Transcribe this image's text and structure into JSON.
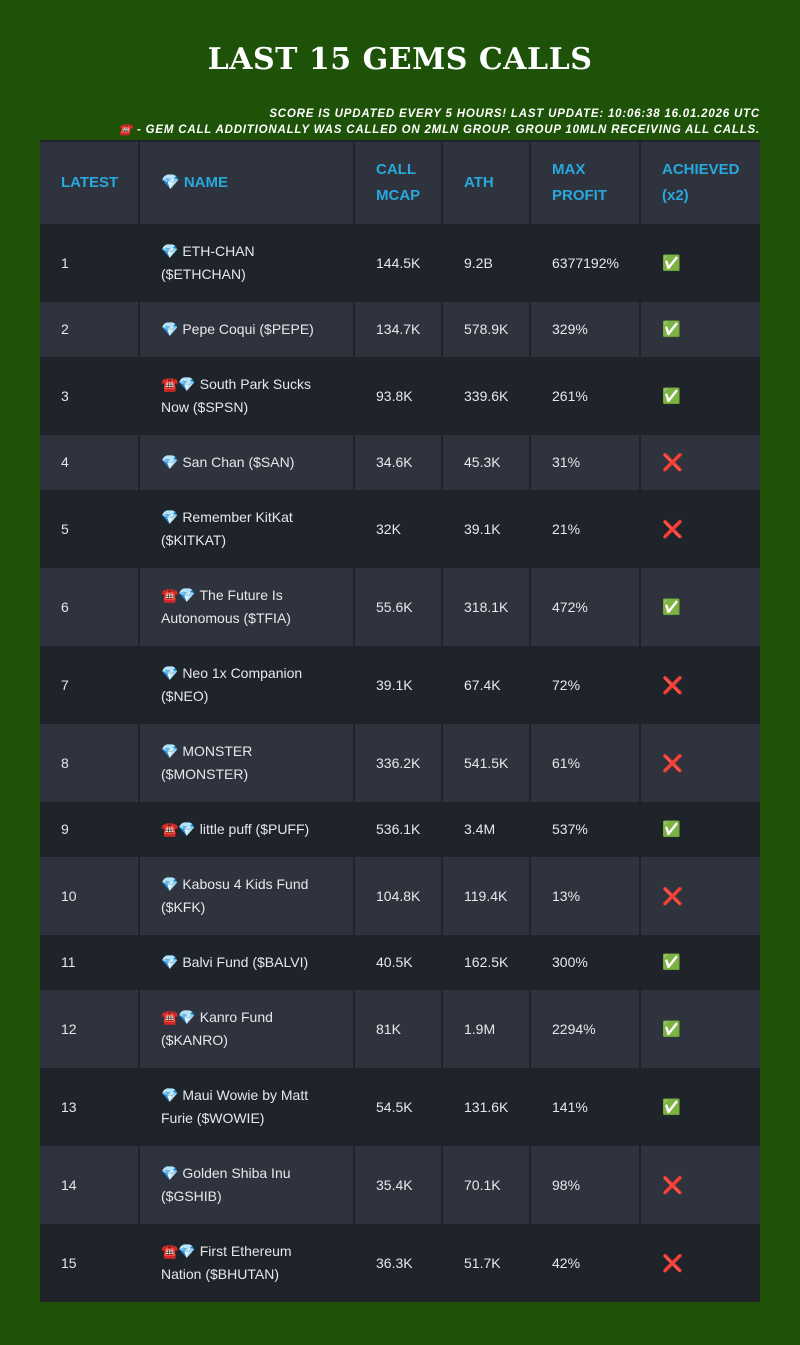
{
  "title": "LAST 15 GEMS CALLS",
  "notes": {
    "update": "SCORE IS UPDATED EVERY 5 HOURS! LAST UPDATE: 10:06:38 16.01.2026 UTC",
    "legend": "☎️ - GEM CALL ADDITIONALLY WAS CALLED ON 2MLN GROUP. GROUP 10MLN RECEIVING ALL CALLS."
  },
  "headers": [
    "LATEST",
    "💎 NAME",
    "CALL MCAP",
    "ATH",
    "MAX PROFIT",
    "ACHIEVED (x2)"
  ],
  "rows": [
    {
      "n": "1",
      "name": "💎 ETH-CHAN ($ETHCHAN)",
      "mcap": "144.5K",
      "ath": "9.2B",
      "profit": "6377192%",
      "ach": "✅"
    },
    {
      "n": "2",
      "name": "💎 Pepe Coqui ($PEPE)",
      "mcap": "134.7K",
      "ath": "578.9K",
      "profit": "329%",
      "ach": "✅"
    },
    {
      "n": "3",
      "name": "☎️💎 South Park Sucks Now ($SPSN)",
      "mcap": "93.8K",
      "ath": "339.6K",
      "profit": "261%",
      "ach": "✅"
    },
    {
      "n": "4",
      "name": "💎 San Chan ($SAN)",
      "mcap": "34.6K",
      "ath": "45.3K",
      "profit": "31%",
      "ach": "❌"
    },
    {
      "n": "5",
      "name": "💎 Remember KitKat ($KITKAT)",
      "mcap": "32K",
      "ath": "39.1K",
      "profit": "21%",
      "ach": "❌"
    },
    {
      "n": "6",
      "name": "☎️💎 The Future Is Autonomous ($TFIA)",
      "mcap": "55.6K",
      "ath": "318.1K",
      "profit": "472%",
      "ach": "✅"
    },
    {
      "n": "7",
      "name": "💎 Neo 1x Companion ($NEO)",
      "mcap": "39.1K",
      "ath": "67.4K",
      "profit": "72%",
      "ach": "❌"
    },
    {
      "n": "8",
      "name": "💎 MONSTER ($MONSTER)",
      "mcap": "336.2K",
      "ath": "541.5K",
      "profit": "61%",
      "ach": "❌"
    },
    {
      "n": "9",
      "name": "☎️💎 little puff ($PUFF)",
      "mcap": "536.1K",
      "ath": "3.4M",
      "profit": "537%",
      "ach": "✅"
    },
    {
      "n": "10",
      "name": "💎 Kabosu 4 Kids Fund ($KFK)",
      "mcap": "104.8K",
      "ath": "119.4K",
      "profit": "13%",
      "ach": "❌"
    },
    {
      "n": "11",
      "name": "💎 Balvi Fund ($BALVI)",
      "mcap": "40.5K",
      "ath": "162.5K",
      "profit": "300%",
      "ach": "✅"
    },
    {
      "n": "12",
      "name": "☎️💎 Kanro Fund ($KANRO)",
      "mcap": "81K",
      "ath": "1.9M",
      "profit": "2294%",
      "ach": "✅"
    },
    {
      "n": "13",
      "name": "💎 Maui Wowie by Matt Furie ($WOWIE)",
      "mcap": "54.5K",
      "ath": "131.6K",
      "profit": "141%",
      "ach": "✅"
    },
    {
      "n": "14",
      "name": "💎 Golden Shiba Inu ($GSHIB)",
      "mcap": "35.4K",
      "ath": "70.1K",
      "profit": "98%",
      "ach": "❌"
    },
    {
      "n": "15",
      "name": "☎️💎 First Ethereum Nation ($BHUTAN)",
      "mcap": "36.3K",
      "ath": "51.7K",
      "profit": "42%",
      "ach": "❌"
    }
  ]
}
